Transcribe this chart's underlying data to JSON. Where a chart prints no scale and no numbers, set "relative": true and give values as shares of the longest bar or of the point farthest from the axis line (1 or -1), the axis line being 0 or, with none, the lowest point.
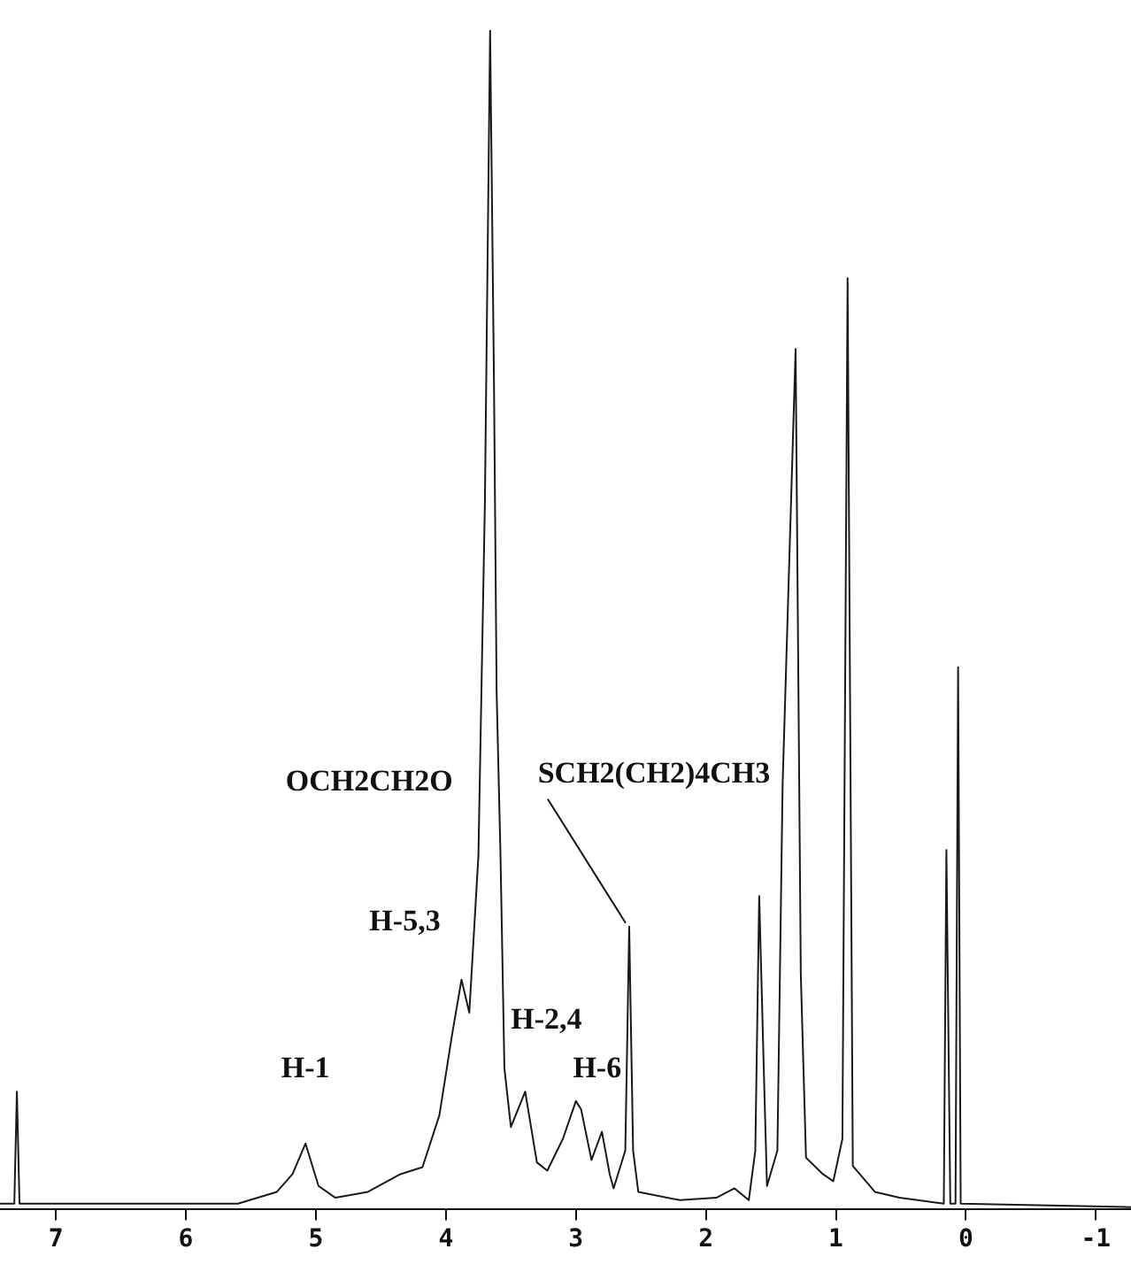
{
  "chart_data": {
    "type": "line",
    "relative": true,
    "grid": false,
    "legend": false,
    "marker": "none",
    "line_style": "solid",
    "xlim": [
      7.43,
      -1.27
    ],
    "xticks": [
      7,
      6,
      5,
      4,
      3,
      2,
      1,
      0,
      -1
    ],
    "series": [
      {
        "color": "#1a1a1a",
        "x": [
          7.43,
          7.32,
          7.3,
          7.28,
          5.6,
          5.3,
          5.18,
          5.08,
          4.98,
          4.85,
          4.6,
          4.35,
          4.18,
          4.05,
          3.95,
          3.88,
          3.82,
          3.75,
          3.7,
          3.66,
          3.63,
          3.61,
          3.58,
          3.55,
          3.5,
          3.39,
          3.3,
          3.22,
          3.1,
          3.0,
          2.96,
          2.88,
          2.8,
          2.74,
          2.71,
          2.62,
          2.59,
          2.56,
          2.52,
          2.2,
          1.92,
          1.78,
          1.67,
          1.62,
          1.59,
          1.55,
          1.53,
          1.45,
          1.41,
          1.31,
          1.27,
          1.23,
          1.1,
          1.02,
          0.95,
          0.91,
          0.87,
          0.7,
          0.51,
          0.17,
          0.15,
          0.12,
          0.08,
          0.06,
          0.04,
          -1.27
        ],
        "values": [
          0.005,
          0.005,
          0.1,
          0.005,
          0.005,
          0.015,
          0.03,
          0.056,
          0.02,
          0.01,
          0.015,
          0.03,
          0.036,
          0.08,
          0.15,
          0.195,
          0.167,
          0.3,
          0.6,
          1.0,
          0.7,
          0.44,
          0.3,
          0.12,
          0.07,
          0.1,
          0.04,
          0.033,
          0.06,
          0.092,
          0.085,
          0.042,
          0.066,
          0.03,
          0.018,
          0.05,
          0.24,
          0.05,
          0.015,
          0.008,
          0.01,
          0.018,
          0.008,
          0.05,
          0.266,
          0.1,
          0.02,
          0.05,
          0.36,
          0.73,
          0.2,
          0.044,
          0.03,
          0.024,
          0.06,
          0.79,
          0.037,
          0.015,
          0.01,
          0.005,
          0.305,
          0.005,
          0.005,
          0.46,
          0.005,
          0.002
        ]
      }
    ],
    "annotations": [
      {
        "text": "H-1",
        "x": 5.08,
        "y": 0.056
      },
      {
        "text": "H-5,3",
        "x": 3.88,
        "y": 0.195
      },
      {
        "text": "OCH2CH2O",
        "x": 3.61,
        "y": 0.44
      },
      {
        "text": "H-2,4",
        "x": 3.39,
        "y": 0.1
      },
      {
        "text": "H-6",
        "x": 3.0,
        "y": 0.092
      },
      {
        "text": "SCH2(CH2)4CH3",
        "x": 2.59,
        "y": 0.24
      }
    ]
  }
}
